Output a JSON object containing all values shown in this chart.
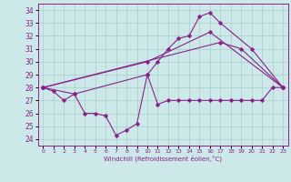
{
  "xlabel": "Windchill (Refroidissement éolien,°C)",
  "bg_color": "#cce8e8",
  "line_color": "#882288",
  "grid_color": "#aacccc",
  "xlim": [
    -0.5,
    23.5
  ],
  "ylim": [
    23.5,
    34.5
  ],
  "yticks": [
    24,
    25,
    26,
    27,
    28,
    29,
    30,
    31,
    32,
    33,
    34
  ],
  "xticks": [
    0,
    1,
    2,
    3,
    4,
    5,
    6,
    7,
    8,
    9,
    10,
    11,
    12,
    13,
    14,
    15,
    16,
    17,
    18,
    19,
    20,
    21,
    22,
    23
  ],
  "line1_x": [
    0,
    1,
    2,
    3,
    4,
    5,
    6,
    7,
    8,
    9,
    10,
    11,
    12,
    13,
    14,
    15,
    16,
    17,
    18,
    19,
    20,
    21,
    22,
    23
  ],
  "line1_y": [
    28.0,
    27.7,
    27.0,
    27.5,
    26.0,
    26.0,
    25.8,
    24.3,
    24.7,
    25.2,
    29.0,
    26.7,
    27.0,
    27.0,
    27.0,
    27.0,
    27.0,
    27.0,
    27.0,
    27.0,
    27.0,
    27.0,
    28.0,
    28.0
  ],
  "line2_x": [
    0,
    3,
    10,
    11,
    12,
    13,
    14,
    15,
    16,
    17,
    20,
    23
  ],
  "line2_y": [
    28.0,
    27.5,
    29.0,
    30.0,
    31.0,
    31.8,
    32.0,
    33.5,
    33.8,
    33.0,
    31.0,
    28.0
  ],
  "line3_x": [
    0,
    17,
    19,
    23
  ],
  "line3_y": [
    28.0,
    31.5,
    31.0,
    28.0
  ],
  "line4_x": [
    0,
    10,
    16,
    23
  ],
  "line4_y": [
    28.0,
    30.0,
    32.3,
    28.0
  ]
}
